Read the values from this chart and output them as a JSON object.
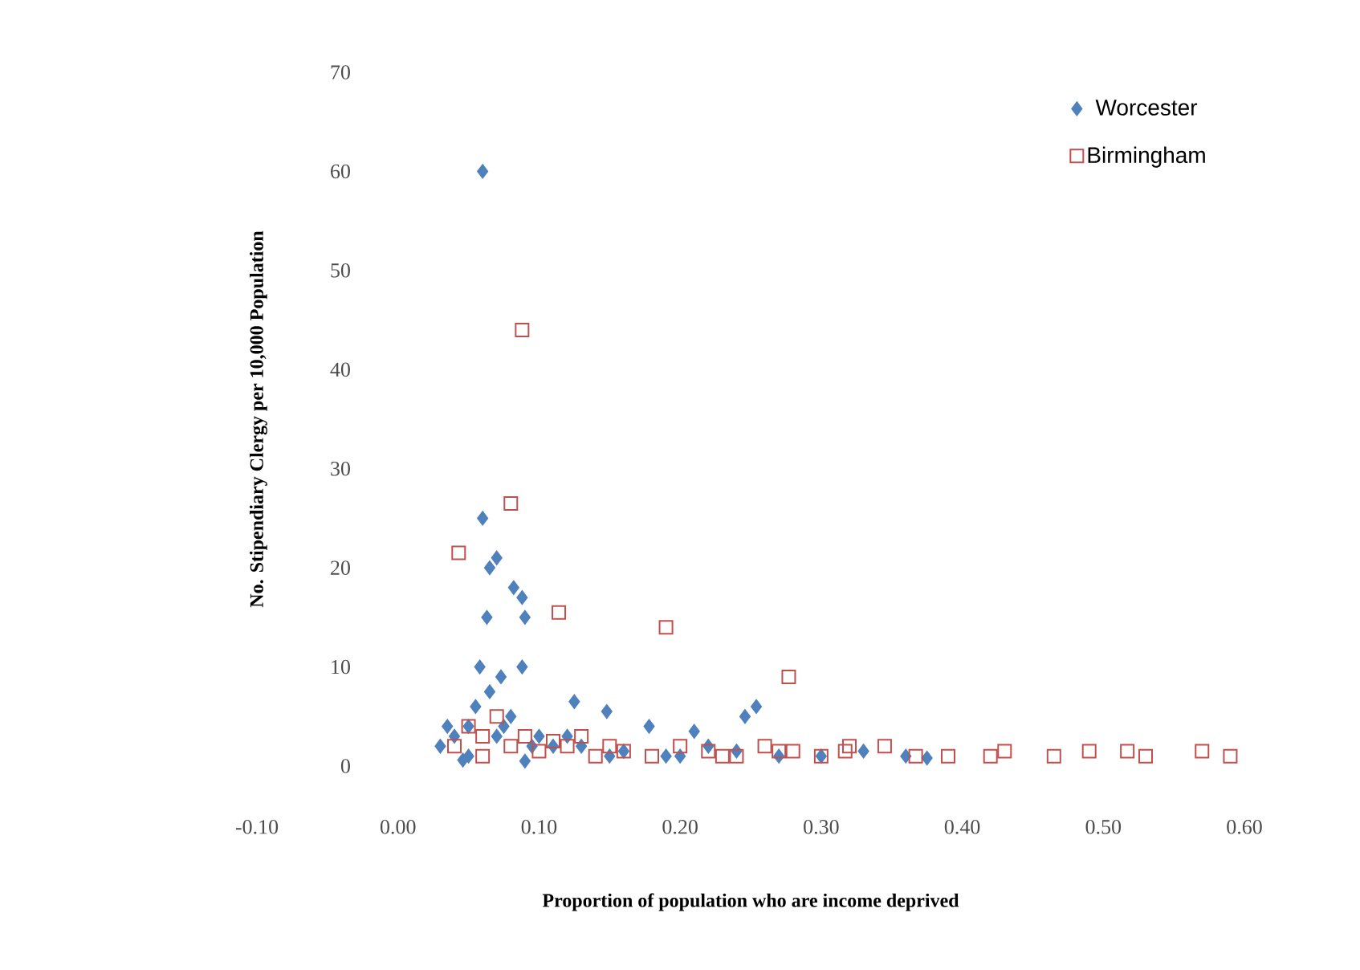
{
  "chart_data": {
    "type": "scatter",
    "xlabel": "Proportion of population who are income deprived",
    "ylabel": "No. Stipendiary Clergy per 10,000 Population",
    "xlim": [
      -0.1,
      0.6
    ],
    "ylim": [
      0,
      70
    ],
    "xticks": [
      {
        "value": -0.1,
        "label": "-0.10"
      },
      {
        "value": 0,
        "label": "0.00"
      },
      {
        "value": 0.1,
        "label": "0.10"
      },
      {
        "value": 0.2,
        "label": "0.20"
      },
      {
        "value": 0.3,
        "label": "0.30"
      },
      {
        "value": 0.4,
        "label": "0.40"
      },
      {
        "value": 0.5,
        "label": "0.50"
      },
      {
        "value": 0.6,
        "label": "0.60"
      }
    ],
    "yticks": [
      0,
      10,
      20,
      30,
      40,
      50,
      60,
      70
    ],
    "legend": "top right",
    "grid": false,
    "series": [
      {
        "name": "Worcester",
        "color": "#4f81bd",
        "marker": "diamond",
        "x": [
          0.06,
          0.06,
          0.07,
          0.065,
          0.063,
          0.088,
          0.09,
          0.082,
          0.058,
          0.073,
          0.088,
          0.065,
          0.125,
          0.148,
          0.178,
          0.21,
          0.254,
          0.246,
          0.04,
          0.046,
          0.03,
          0.05,
          0.07,
          0.08,
          0.1,
          0.11,
          0.13,
          0.16,
          0.19,
          0.22,
          0.24,
          0.27,
          0.3,
          0.33,
          0.36,
          0.375,
          0.035,
          0.055,
          0.075,
          0.095,
          0.12,
          0.15,
          0.2,
          0.05,
          0.09
        ],
        "values": [
          60,
          25,
          21,
          20,
          15,
          17,
          15,
          18,
          10,
          9,
          10,
          7.5,
          6.5,
          5.5,
          4,
          3.5,
          6,
          5,
          3,
          0.6,
          2,
          4,
          3,
          5,
          3,
          2,
          2,
          1.5,
          1,
          2,
          1.5,
          1,
          1,
          1.5,
          1,
          0.8,
          4,
          6,
          4,
          2,
          3,
          1,
          1,
          1,
          0.5
        ]
      },
      {
        "name": "Birmingham",
        "color": "#c0504d",
        "marker": "square",
        "x": [
          0.088,
          0.08,
          0.043,
          0.19,
          0.277,
          0.114,
          0.04,
          0.06,
          0.08,
          0.1,
          0.12,
          0.14,
          0.16,
          0.18,
          0.2,
          0.22,
          0.24,
          0.26,
          0.28,
          0.3,
          0.317,
          0.345,
          0.367,
          0.39,
          0.42,
          0.43,
          0.465,
          0.49,
          0.517,
          0.53,
          0.57,
          0.59,
          0.05,
          0.07,
          0.09,
          0.11,
          0.13,
          0.15,
          0.23,
          0.27,
          0.32,
          0.06
        ],
        "values": [
          44,
          26.5,
          21.5,
          14,
          9,
          15.5,
          2,
          3,
          2,
          1.5,
          2,
          1,
          1.5,
          1,
          2,
          1.5,
          1,
          2,
          1.5,
          1,
          1.5,
          2,
          1,
          1,
          1,
          1.5,
          1,
          1.5,
          1.5,
          1,
          1.5,
          1,
          4,
          5,
          3,
          2.5,
          3,
          2,
          1,
          1.5,
          2,
          1
        ]
      }
    ]
  }
}
